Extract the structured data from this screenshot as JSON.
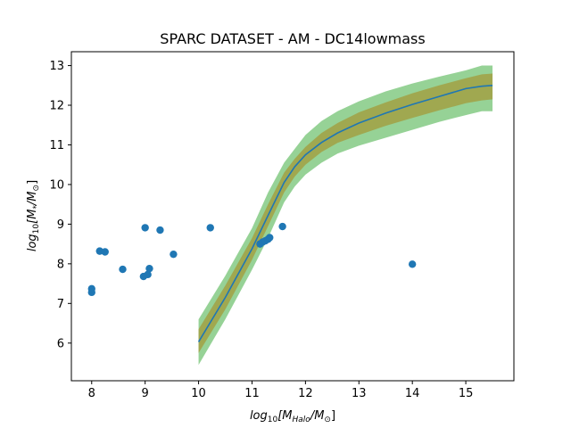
{
  "chart_data": {
    "type": "scatter",
    "title": "SPARC DATASET - AM - DC14lowmass",
    "xlabel": {
      "base": "log",
      "sub": "10",
      "main": "[M",
      "msub": "Halo",
      "tail": "/M",
      "tsub": "⊙",
      "end": "]"
    },
    "ylabel": {
      "base": "log",
      "sub": "10",
      "main": "[M",
      "msub": "*",
      "tail": "/M",
      "tsub": "⊙",
      "end": "]"
    },
    "xlim": [
      7.62,
      15.9
    ],
    "ylim": [
      5.05,
      13.35
    ],
    "xticks": [
      8,
      9,
      10,
      11,
      12,
      13,
      14,
      15
    ],
    "yticks": [
      6,
      7,
      8,
      9,
      10,
      11,
      12,
      13
    ],
    "colors": {
      "scatter": "#1f77b4",
      "line": "#1f77b4",
      "band_outer": "#96d296",
      "band_inner": "#a0a850"
    },
    "band_outer": {
      "x": [
        10.0,
        10.5,
        11.0,
        11.3,
        11.6,
        11.8,
        12.0,
        12.3,
        12.6,
        13.0,
        13.5,
        14.0,
        14.5,
        15.0,
        15.3,
        15.5
      ],
      "upper": [
        6.6,
        7.7,
        8.9,
        9.8,
        10.55,
        10.9,
        11.25,
        11.6,
        11.85,
        12.1,
        12.35,
        12.55,
        12.72,
        12.88,
        13.0,
        13.0
      ],
      "lower": [
        5.45,
        6.6,
        7.85,
        8.65,
        9.55,
        9.95,
        10.25,
        10.55,
        10.78,
        10.98,
        11.18,
        11.38,
        11.58,
        11.75,
        11.85,
        11.85
      ]
    },
    "band_inner": {
      "x": [
        10.0,
        10.5,
        11.0,
        11.3,
        11.6,
        11.8,
        12.0,
        12.3,
        12.6,
        13.0,
        13.5,
        14.0,
        14.5,
        15.0,
        15.3,
        15.5
      ],
      "upper": [
        6.35,
        7.45,
        8.65,
        9.5,
        10.3,
        10.65,
        10.95,
        11.3,
        11.55,
        11.82,
        12.07,
        12.3,
        12.5,
        12.68,
        12.78,
        12.8
      ],
      "lower": [
        5.75,
        6.85,
        8.1,
        8.95,
        9.8,
        10.2,
        10.5,
        10.82,
        11.05,
        11.25,
        11.48,
        11.68,
        11.87,
        12.05,
        12.12,
        12.15
      ]
    },
    "line": {
      "x": [
        10.0,
        10.5,
        11.0,
        11.3,
        11.6,
        11.8,
        12.0,
        12.3,
        12.6,
        13.0,
        13.5,
        14.0,
        14.5,
        15.0,
        15.3,
        15.5
      ],
      "y": [
        6.03,
        7.15,
        8.38,
        9.22,
        10.05,
        10.45,
        10.75,
        11.06,
        11.3,
        11.55,
        11.8,
        12.02,
        12.22,
        12.42,
        12.48,
        12.5
      ]
    },
    "points": [
      {
        "x": 8.0,
        "y": 7.37
      },
      {
        "x": 8.0,
        "y": 7.28
      },
      {
        "x": 8.15,
        "y": 8.32
      },
      {
        "x": 8.25,
        "y": 8.3
      },
      {
        "x": 8.58,
        "y": 7.86
      },
      {
        "x": 8.97,
        "y": 7.68
      },
      {
        "x": 9.0,
        "y": 8.91
      },
      {
        "x": 9.05,
        "y": 7.73
      },
      {
        "x": 9.08,
        "y": 7.88
      },
      {
        "x": 9.28,
        "y": 8.85
      },
      {
        "x": 9.53,
        "y": 8.24
      },
      {
        "x": 10.22,
        "y": 8.91
      },
      {
        "x": 11.15,
        "y": 8.5
      },
      {
        "x": 11.2,
        "y": 8.55
      },
      {
        "x": 11.25,
        "y": 8.58
      },
      {
        "x": 11.3,
        "y": 8.62
      },
      {
        "x": 11.33,
        "y": 8.66
      },
      {
        "x": 11.57,
        "y": 8.94
      },
      {
        "x": 14.0,
        "y": 7.99
      }
    ]
  }
}
